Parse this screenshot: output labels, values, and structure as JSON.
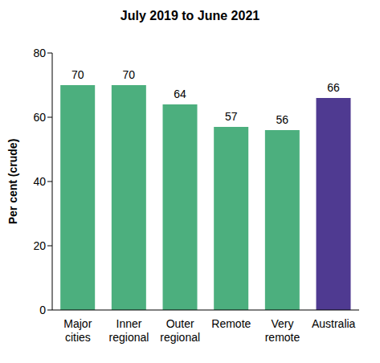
{
  "chart_data": {
    "type": "bar",
    "title": "July 2019 to June 2021",
    "y_label": "Per cent (crude)",
    "categories": [
      "Major cities",
      "Inner regional",
      "Outer regional",
      "Remote",
      "Very remote",
      "Australia"
    ],
    "values": [
      70,
      70,
      64,
      57,
      56,
      66
    ],
    "colors": [
      "#4caf7e",
      "#4caf7e",
      "#4caf7e",
      "#4caf7e",
      "#4caf7e",
      "#4f3a91"
    ],
    "ylim": [
      0,
      80
    ],
    "yticks": [
      0,
      20,
      40,
      60,
      80
    ],
    "grid": false,
    "data_labels": true
  }
}
